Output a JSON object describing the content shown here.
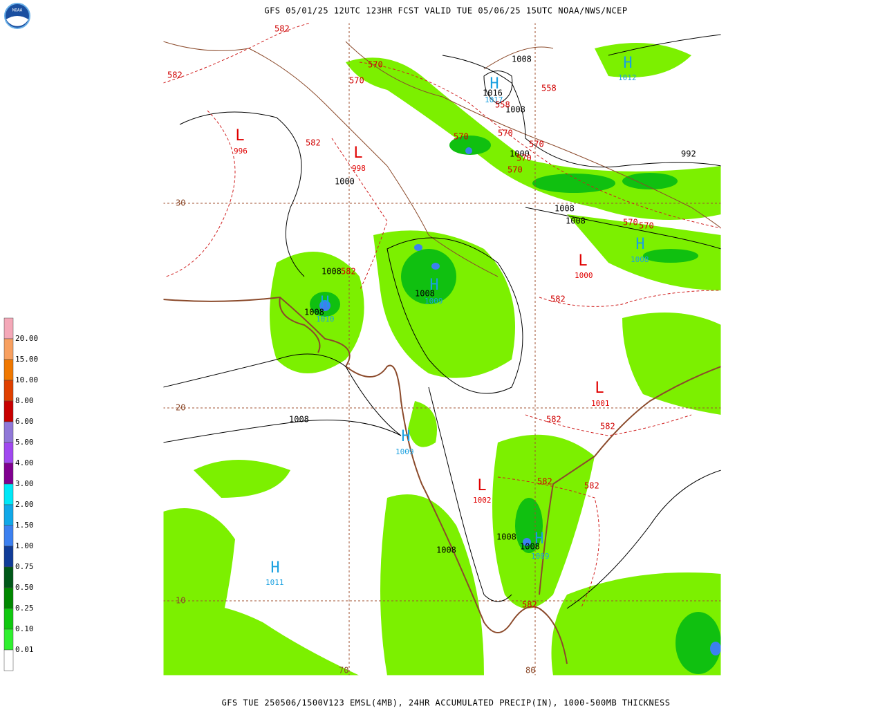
{
  "header": {
    "title": "GFS 05/01/25 12UTC 123HR FCST VALID TUE 05/06/25 15UTC NOAA/NWS/NCEP"
  },
  "footer": {
    "caption": "GFS TUE 250506/1500V123 EMSL(4MB), 24HR ACCUMULATED PRECIP(IN), 1000-500MB THICKNESS"
  },
  "logo": {
    "text": "NOAA"
  },
  "legend": {
    "labels": [
      "20.00",
      "15.00",
      "10.00",
      "8.00",
      "6.00",
      "5.00",
      "4.00",
      "3.00",
      "2.00",
      "1.50",
      "1.00",
      "0.75",
      "0.50",
      "0.25",
      "0.10",
      "0.01"
    ],
    "colors": [
      "#f4a8b8",
      "#f8a060",
      "#f07800",
      "#e04000",
      "#c80000",
      "#9078d8",
      "#a048f0",
      "#800090",
      "#00e8f8",
      "#10a8e8",
      "#3c80f0",
      "#103c98",
      "#005818",
      "#008800",
      "#10c810",
      "#30f030",
      "#ffffff"
    ]
  },
  "pressure_centers": [
    {
      "letter": "L",
      "value": "996"
    },
    {
      "letter": "L",
      "value": "998"
    },
    {
      "letter": "H",
      "value": "1017"
    },
    {
      "letter": "H",
      "value": "1012"
    },
    {
      "letter": "H",
      "value": "1009"
    },
    {
      "letter": "H",
      "value": "1008"
    },
    {
      "letter": "L",
      "value": "1000"
    },
    {
      "letter": "H",
      "value": "1010"
    },
    {
      "letter": "L",
      "value": "1001"
    },
    {
      "letter": "H",
      "value": "1009"
    },
    {
      "letter": "L",
      "value": "1002"
    },
    {
      "letter": "H",
      "value": "1011"
    },
    {
      "letter": "H",
      "value": "1009"
    }
  ],
  "isobar_labels": [
    "1008",
    "1016",
    "1008",
    "1000",
    "992",
    "1000",
    "1008",
    "1008",
    "1008",
    "1008",
    "1008",
    "1008",
    "1008",
    "1008",
    "1008"
  ],
  "thickness_labels": [
    "582",
    "582",
    "570",
    "570",
    "558",
    "558",
    "570",
    "570",
    "570",
    "570",
    "570",
    "582",
    "582",
    "570",
    "570",
    "582",
    "582",
    "582",
    "582",
    "582",
    "582"
  ],
  "grid_labels": [
    "30",
    "20",
    "10",
    "70",
    "80"
  ]
}
